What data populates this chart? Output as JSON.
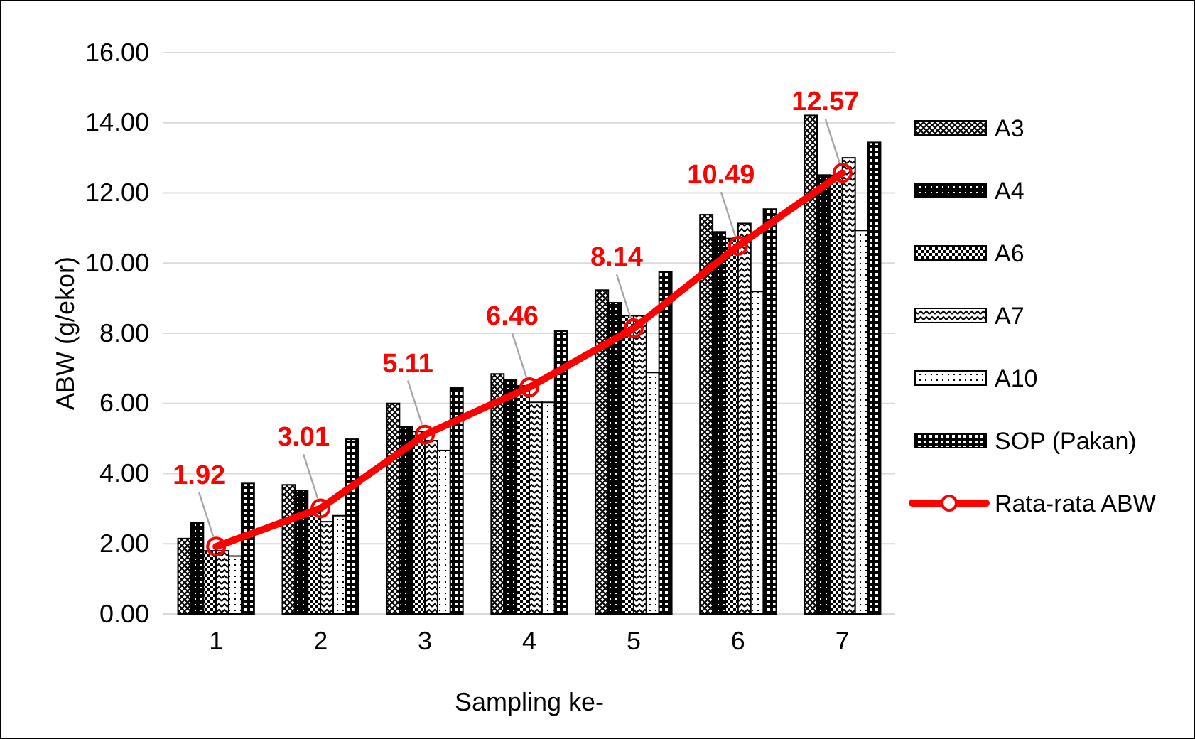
{
  "chart_data": {
    "type": "bar",
    "xlabel": "Sampling ke-",
    "ylabel": "ABW (g/ekor)",
    "categories": [
      "1",
      "2",
      "3",
      "4",
      "5",
      "6",
      "7"
    ],
    "series": [
      {
        "name": "A3",
        "color": "#000000",
        "values": [
          2.15,
          3.68,
          6.0,
          6.84,
          9.23,
          11.38,
          14.21
        ]
      },
      {
        "name": "A4",
        "color": "#000000",
        "values": [
          2.6,
          3.52,
          5.34,
          6.68,
          8.87,
          10.89,
          12.51
        ]
      },
      {
        "name": "A6",
        "color": "#000000",
        "values": [
          1.8,
          2.9,
          5.2,
          6.5,
          8.5,
          10.7,
          12.5
        ]
      },
      {
        "name": "A7",
        "color": "#000000",
        "values": [
          1.8,
          2.63,
          4.94,
          6.03,
          8.5,
          11.13,
          13.0
        ]
      },
      {
        "name": "A10",
        "color": "#000000",
        "values": [
          1.65,
          2.8,
          4.66,
          6.03,
          6.88,
          9.19,
          10.93
        ]
      },
      {
        "name": "SOP (Pakan)",
        "color": "#000000",
        "values": [
          3.72,
          4.98,
          6.44,
          8.06,
          9.76,
          11.54,
          13.44
        ]
      },
      {
        "name": "Rata-rata ABW",
        "type": "line",
        "color": "#ff0000",
        "marker": "circle",
        "values": [
          1.92,
          3.01,
          5.11,
          6.46,
          8.14,
          10.49,
          12.57
        ],
        "value_labels": [
          "1.92",
          "3.01",
          "5.11",
          "6.46",
          "8.14",
          "10.49",
          "12.57"
        ]
      }
    ],
    "ylim": [
      0,
      16
    ],
    "yticks": [
      {
        "value": 0,
        "label": "0.00"
      },
      {
        "value": 2,
        "label": "2.00"
      },
      {
        "value": 4,
        "label": "4.00"
      },
      {
        "value": 6,
        "label": "6.00"
      },
      {
        "value": 8,
        "label": "8.00"
      },
      {
        "value": 10,
        "label": "10.00"
      },
      {
        "value": 12,
        "label": "12.00"
      },
      {
        "value": 14,
        "label": "14.00"
      },
      {
        "value": 16,
        "label": "16.00"
      }
    ],
    "grid": "y",
    "legend": "right"
  }
}
